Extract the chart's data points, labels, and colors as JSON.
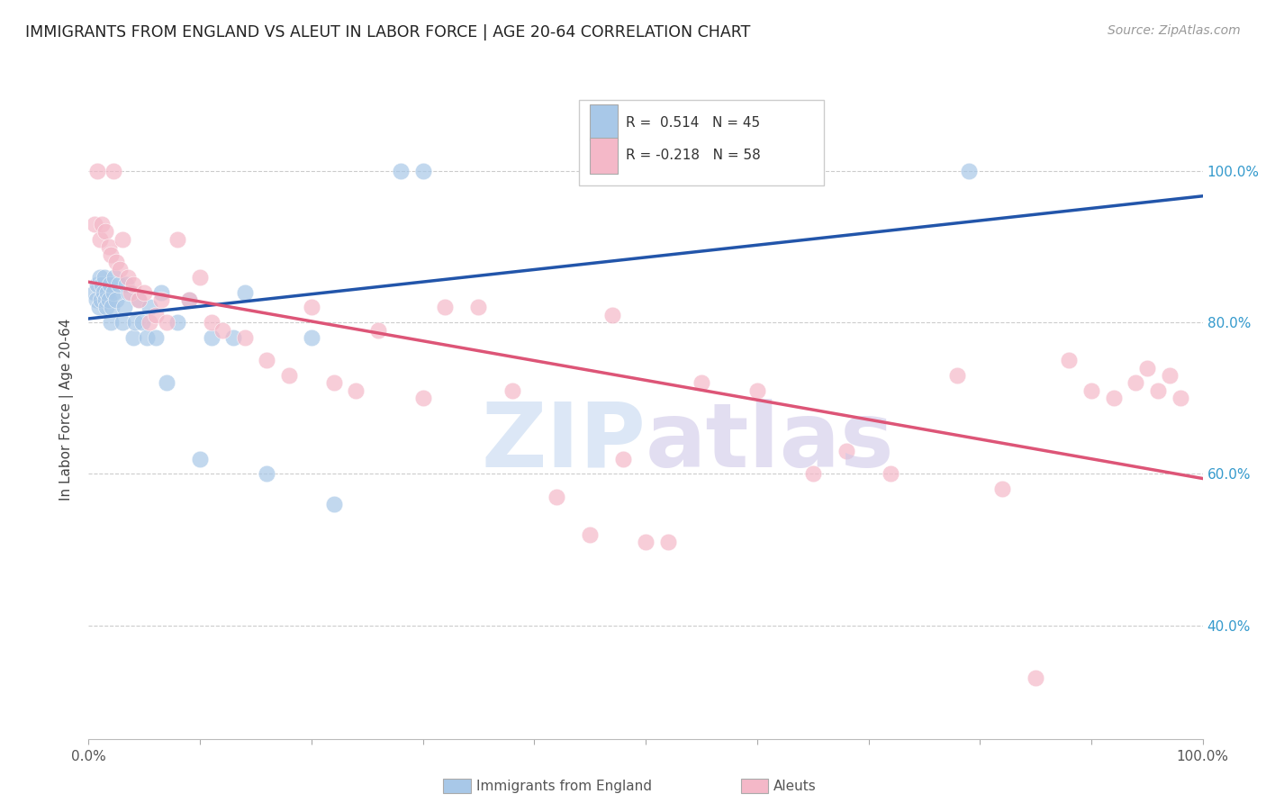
{
  "title": "IMMIGRANTS FROM ENGLAND VS ALEUT IN LABOR FORCE | AGE 20-64 CORRELATION CHART",
  "source": "Source: ZipAtlas.com",
  "ylabel": "In Labor Force | Age 20-64",
  "xlim": [
    0.0,
    1.0
  ],
  "ylim": [
    0.25,
    1.12
  ],
  "y_ticks_right": [
    0.4,
    0.6,
    0.8,
    1.0
  ],
  "y_tick_labels_right": [
    "40.0%",
    "60.0%",
    "80.0%",
    "100.0%"
  ],
  "legend_R1": "0.514",
  "legend_N1": "45",
  "legend_R2": "-0.218",
  "legend_N2": "58",
  "blue_color": "#a8c8e8",
  "pink_color": "#f4b8c8",
  "blue_line_color": "#2255aa",
  "pink_line_color": "#dd5577",
  "england_x": [
    0.005,
    0.007,
    0.008,
    0.009,
    0.01,
    0.011,
    0.012,
    0.013,
    0.014,
    0.015,
    0.016,
    0.017,
    0.018,
    0.019,
    0.02,
    0.021,
    0.022,
    0.023,
    0.025,
    0.027,
    0.03,
    0.032,
    0.034,
    0.036,
    0.04,
    0.042,
    0.045,
    0.048,
    0.052,
    0.055,
    0.06,
    0.065,
    0.07,
    0.08,
    0.09,
    0.1,
    0.11,
    0.13,
    0.14,
    0.16,
    0.2,
    0.22,
    0.28,
    0.3,
    0.79
  ],
  "england_y": [
    0.84,
    0.83,
    0.85,
    0.82,
    0.86,
    0.83,
    0.85,
    0.84,
    0.86,
    0.83,
    0.82,
    0.84,
    0.83,
    0.85,
    0.8,
    0.82,
    0.84,
    0.86,
    0.83,
    0.85,
    0.8,
    0.82,
    0.85,
    0.84,
    0.78,
    0.8,
    0.83,
    0.8,
    0.78,
    0.82,
    0.78,
    0.84,
    0.72,
    0.8,
    0.83,
    0.62,
    0.78,
    0.78,
    0.84,
    0.6,
    0.78,
    0.56,
    1.0,
    1.0,
    1.0
  ],
  "aleut_x": [
    0.005,
    0.008,
    0.01,
    0.012,
    0.015,
    0.018,
    0.02,
    0.022,
    0.025,
    0.028,
    0.03,
    0.035,
    0.038,
    0.04,
    0.045,
    0.05,
    0.055,
    0.06,
    0.065,
    0.07,
    0.08,
    0.09,
    0.1,
    0.11,
    0.12,
    0.14,
    0.16,
    0.18,
    0.2,
    0.22,
    0.24,
    0.26,
    0.3,
    0.32,
    0.35,
    0.38,
    0.42,
    0.45,
    0.47,
    0.48,
    0.5,
    0.52,
    0.55,
    0.6,
    0.65,
    0.68,
    0.72,
    0.78,
    0.82,
    0.85,
    0.88,
    0.9,
    0.92,
    0.94,
    0.95,
    0.96,
    0.97,
    0.98
  ],
  "aleut_y": [
    0.93,
    1.0,
    0.91,
    0.93,
    0.92,
    0.9,
    0.89,
    1.0,
    0.88,
    0.87,
    0.91,
    0.86,
    0.84,
    0.85,
    0.83,
    0.84,
    0.8,
    0.81,
    0.83,
    0.8,
    0.91,
    0.83,
    0.86,
    0.8,
    0.79,
    0.78,
    0.75,
    0.73,
    0.82,
    0.72,
    0.71,
    0.79,
    0.7,
    0.82,
    0.82,
    0.71,
    0.57,
    0.52,
    0.81,
    0.62,
    0.51,
    0.51,
    0.72,
    0.71,
    0.6,
    0.63,
    0.6,
    0.73,
    0.58,
    0.33,
    0.75,
    0.71,
    0.7,
    0.72,
    0.74,
    0.71,
    0.73,
    0.7
  ],
  "background_color": "#ffffff",
  "grid_color": "#cccccc",
  "watermark_zip_color": "#c5d8f0",
  "watermark_atlas_color": "#d0c8e8"
}
